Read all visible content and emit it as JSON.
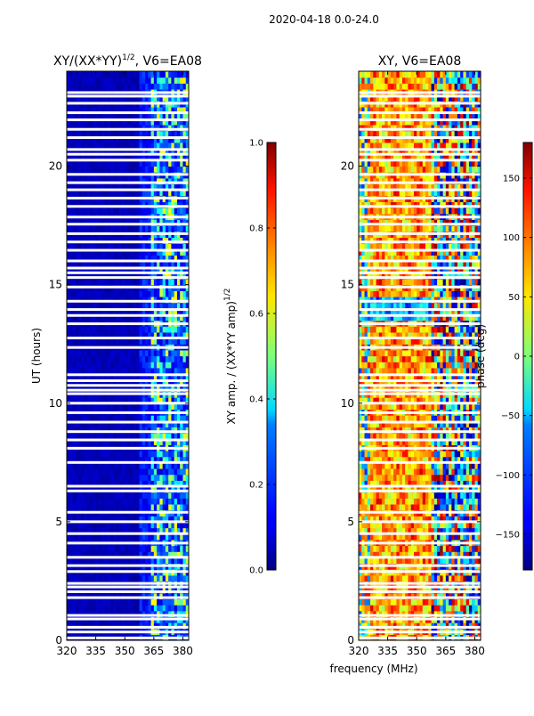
{
  "suptitle": "2020-04-18 0.0-24.0",
  "chart_data": [
    {
      "type": "heatmap",
      "title_main": "XY/(XX*YY)",
      "title_exponent": "1/2",
      "title_suffix": ", V6=EA08",
      "ylabel": "UT (hours)",
      "xlim": [
        320,
        383
      ],
      "ylim": [
        0,
        24
      ],
      "xticks": [
        320,
        335,
        350,
        365,
        380
      ],
      "yticks": [
        0,
        5,
        10,
        15,
        20
      ],
      "colormap": "jet",
      "colorbar": {
        "label_main": "XY amp. / (XX*YY amp)",
        "label_exponent": "1/2",
        "range": [
          0.0,
          1.0
        ],
        "ticks": [
          "0.0",
          "0.2",
          "0.4",
          "0.6",
          "0.8",
          "1.0"
        ],
        "tick_values": [
          0.0,
          0.2,
          0.4,
          0.6,
          0.8,
          1.0
        ]
      }
    },
    {
      "type": "heatmap",
      "title": "XY, V6=EA08",
      "xlabel": "frequency (MHz)",
      "xlim": [
        320,
        383
      ],
      "ylim": [
        0,
        24
      ],
      "xticks": [
        320,
        335,
        350,
        365,
        380
      ],
      "yticks": [
        0,
        5,
        10,
        15,
        20
      ],
      "colormap": "jet",
      "colorbar": {
        "label": "phase (deg)",
        "range": [
          -180,
          180
        ],
        "ticks": [
          "150",
          "100",
          "50",
          "0",
          "−50",
          "−100",
          "−150"
        ],
        "tick_values": [
          150,
          100,
          50,
          0,
          -50,
          -100,
          -150
        ]
      }
    }
  ],
  "flagged_ut_hours": [
    0.1,
    0.35,
    0.55,
    0.9,
    1.05,
    1.8,
    2.05,
    2.25,
    2.4,
    2.9,
    3.15,
    3.5,
    4.1,
    4.5,
    5.0,
    5.4,
    6.3,
    6.5,
    7.5,
    8.1,
    8.45,
    8.8,
    9.2,
    9.6,
    10.0,
    10.4,
    10.55,
    10.75,
    10.95,
    11.2,
    12.35,
    12.75,
    13.35,
    13.7,
    13.95,
    14.3,
    14.9,
    15.3,
    15.5,
    15.7,
    16.0,
    16.45,
    16.8,
    17.15,
    17.55,
    17.85,
    18.3,
    18.65,
    19.0,
    19.3,
    19.65,
    20.25,
    20.5,
    20.7,
    21.2,
    21.55,
    21.95,
    22.25,
    22.65,
    22.95,
    23.1
  ]
}
